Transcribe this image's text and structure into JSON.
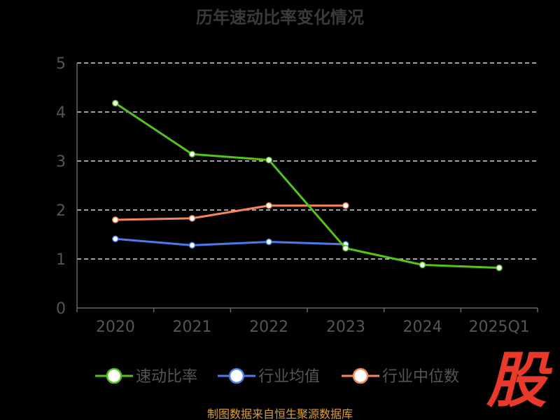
{
  "chart_data": {
    "type": "line",
    "title": "历年速动比率变化情况",
    "categories": [
      "2020",
      "2021",
      "2022",
      "2023",
      "2024",
      "2025Q1"
    ],
    "ylim": [
      0,
      5
    ],
    "yticks": [
      "0",
      "1",
      "2",
      "3",
      "4",
      "5"
    ],
    "grid": true,
    "legend_position": "bottom",
    "series": [
      {
        "name": "速动比率",
        "color": "#52c41a",
        "values": [
          4.18,
          3.14,
          3.02,
          1.22,
          0.88,
          0.82
        ]
      },
      {
        "name": "行业均值",
        "color": "#4b7bec",
        "values": [
          1.41,
          1.28,
          1.35,
          1.3,
          null,
          null
        ]
      },
      {
        "name": "行业中位数",
        "color": "#f5875a",
        "values": [
          1.8,
          1.83,
          2.09,
          2.09,
          null,
          null
        ]
      }
    ]
  },
  "footer": {
    "source": "制图数据来自恒生聚源数据库"
  },
  "logo": {
    "text": "股",
    "color": "#e8392a"
  }
}
